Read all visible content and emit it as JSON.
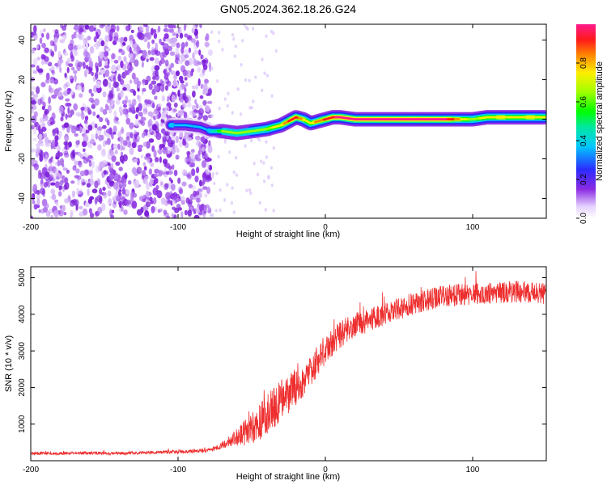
{
  "title": "GN05.2024.362.18.26.G24",
  "chart_data": [
    {
      "type": "heatmap",
      "xlabel": "Height of straight line (km)",
      "ylabel": "Frequency (Hz)",
      "xlim": [
        -200,
        150
      ],
      "ylim": [
        -50,
        48
      ],
      "xticks": [
        -200,
        -100,
        0,
        100
      ],
      "yticks": [
        -40,
        -20,
        0,
        20,
        40
      ],
      "colorbar": {
        "label": "Normalized spectral amplitude",
        "range": [
          0,
          1
        ],
        "ticks": [
          "0.0",
          "0.2",
          "0.4",
          "0.6",
          "0.8"
        ],
        "tick_values": [
          0,
          0.2,
          0.4,
          0.6,
          0.8
        ]
      },
      "ridge": {
        "x": [
          -105,
          -95,
          -85,
          -78,
          -70,
          -60,
          -50,
          -40,
          -30,
          -25,
          -20,
          -15,
          -10,
          -5,
          0,
          5,
          10,
          20,
          40,
          60,
          80,
          90,
          100,
          110,
          120,
          130,
          140,
          150
        ],
        "y": [
          -3,
          -3,
          -4,
          -6,
          -6,
          -7,
          -6,
          -5,
          -3,
          -1,
          1,
          0,
          -2,
          -1,
          0,
          1,
          1,
          0,
          0,
          0,
          0,
          0,
          0,
          1,
          1,
          1,
          1,
          1
        ],
        "amplitude": [
          0.35,
          0.3,
          0.25,
          0.35,
          0.55,
          0.6,
          0.6,
          0.62,
          0.7,
          0.85,
          0.9,
          0.75,
          0.7,
          0.8,
          0.85,
          0.9,
          0.95,
          1.0,
          1.0,
          1.0,
          0.98,
          0.8,
          0.6,
          0.7,
          0.75,
          0.7,
          0.75,
          0.7
        ]
      },
      "noise_region": {
        "x_from": -200,
        "x_to": -78
      }
    },
    {
      "type": "line",
      "xlabel": "Height of straight line (km)",
      "ylabel": "SNR (10 * v/v)",
      "xlim": [
        -200,
        150
      ],
      "ylim": [
        0,
        5300
      ],
      "xticks": [
        -200,
        -100,
        0,
        100
      ],
      "yticks": [
        1000,
        2000,
        3000,
        4000,
        5000
      ],
      "color": "#ee2e2e",
      "series": [
        {
          "x": [
            -200,
            -180,
            -160,
            -140,
            -120,
            -100,
            -90,
            -80,
            -75,
            -70,
            -65,
            -60,
            -55,
            -50,
            -45,
            -40,
            -35,
            -30,
            -25,
            -20,
            -15,
            -10,
            -5,
            0,
            5,
            10,
            15,
            20,
            30,
            40,
            50,
            60,
            70,
            80,
            90,
            100,
            110,
            120,
            130,
            140,
            150
          ],
          "values": [
            200,
            200,
            210,
            200,
            220,
            240,
            250,
            280,
            330,
            420,
            520,
            620,
            750,
            900,
            1050,
            1250,
            1450,
            1650,
            1850,
            2050,
            2250,
            2450,
            2750,
            3050,
            3250,
            3450,
            3580,
            3700,
            3850,
            4000,
            4150,
            4300,
            4400,
            4500,
            4520,
            4550,
            4580,
            4600,
            4620,
            4600,
            4550
          ],
          "noise_amplitude": [
            40,
            40,
            40,
            40,
            45,
            50,
            55,
            60,
            70,
            100,
            160,
            250,
            350,
            450,
            500,
            550,
            550,
            550,
            550,
            550,
            500,
            480,
            450,
            420,
            400,
            380,
            360,
            340,
            320,
            300,
            300,
            300,
            300,
            300,
            300,
            300,
            300,
            300,
            300,
            300,
            300
          ]
        }
      ]
    }
  ]
}
